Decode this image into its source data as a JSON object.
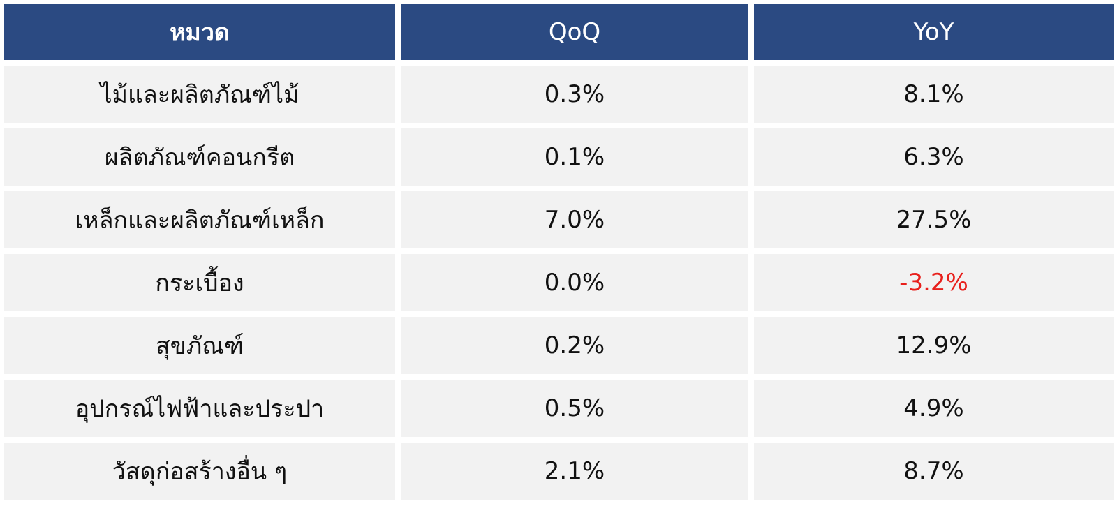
{
  "table": {
    "headers": [
      "หมวด",
      "QoQ",
      "YoY"
    ],
    "rows": [
      {
        "category": "ไม้และผลิตภัณฑ์ไม้",
        "qoq": "0.3%",
        "yoy": "8.1%"
      },
      {
        "category": "ผลิตภัณฑ์คอนกรีต",
        "qoq": "0.1%",
        "yoy": "6.3%"
      },
      {
        "category": "เหล็กและผลิตภัณฑ์เหล็ก",
        "qoq": "7.0%",
        "yoy": "27.5%"
      },
      {
        "category": "กระเบื้อง",
        "qoq": "0.0%",
        "yoy": "-3.2%"
      },
      {
        "category": "สุขภัณฑ์",
        "qoq": "0.2%",
        "yoy": "12.9%"
      },
      {
        "category": "อุปกรณ์ไฟฟ้าและประปา",
        "qoq": "0.5%",
        "yoy": "4.9%"
      },
      {
        "category": "วัสดุก่อสร้างอื่น ๆ",
        "qoq": "2.1%",
        "yoy": "8.7%"
      }
    ]
  },
  "colors": {
    "header_bg": "#2b4a82",
    "header_text": "#ffffff",
    "row_bg": "#f2f2f2",
    "negative": "#e8201c"
  }
}
